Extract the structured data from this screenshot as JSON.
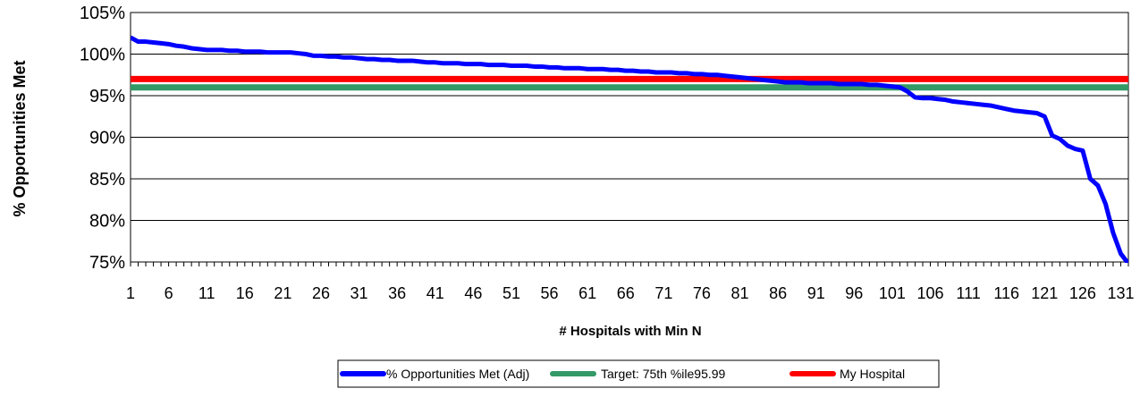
{
  "chart_data": {
    "type": "line",
    "title": "",
    "xlabel": "# Hospitals with Min N",
    "ylabel": "% Opportunities Met",
    "xlim": [
      1,
      132
    ],
    "ylim": [
      75,
      105
    ],
    "x_tick_values": [
      1,
      6,
      11,
      16,
      21,
      26,
      31,
      36,
      41,
      46,
      51,
      56,
      61,
      66,
      71,
      76,
      81,
      86,
      91,
      96,
      101,
      106,
      111,
      116,
      121,
      126,
      131
    ],
    "x_tick_labels": [
      "1",
      "6",
      "11",
      "16",
      "21",
      "26",
      "31",
      "36",
      "41",
      "46",
      "51",
      "56",
      "61",
      "66",
      "71",
      "76",
      "81",
      "86",
      "91",
      "96",
      "101",
      "106",
      "111",
      "116",
      "121",
      "126",
      "131"
    ],
    "y_tick_values": [
      75,
      80,
      85,
      90,
      95,
      100,
      105
    ],
    "y_tick_labels": [
      "75%",
      "80%",
      "85%",
      "90%",
      "95%",
      "100%",
      "105%"
    ],
    "grid": "horizontal",
    "legend_position": "bottom",
    "series": [
      {
        "name": "% Opportunities Met (Adj)",
        "color": "#0000ff",
        "x": [
          1,
          2,
          3,
          4,
          5,
          6,
          7,
          8,
          9,
          10,
          11,
          12,
          13,
          14,
          15,
          16,
          17,
          18,
          19,
          20,
          21,
          22,
          23,
          24,
          25,
          26,
          27,
          28,
          29,
          30,
          31,
          32,
          33,
          34,
          35,
          36,
          37,
          38,
          39,
          40,
          41,
          42,
          43,
          44,
          45,
          46,
          47,
          48,
          49,
          50,
          51,
          52,
          53,
          54,
          55,
          56,
          57,
          58,
          59,
          60,
          61,
          62,
          63,
          64,
          65,
          66,
          67,
          68,
          69,
          70,
          71,
          72,
          73,
          74,
          75,
          76,
          77,
          78,
          79,
          80,
          81,
          82,
          83,
          84,
          85,
          86,
          87,
          88,
          89,
          90,
          91,
          92,
          93,
          94,
          95,
          96,
          97,
          98,
          99,
          100,
          101,
          102,
          103,
          104,
          105,
          106,
          107,
          108,
          109,
          110,
          111,
          112,
          113,
          114,
          115,
          116,
          117,
          118,
          119,
          120,
          121,
          122,
          123,
          124,
          125,
          126,
          127,
          128,
          129,
          130,
          131,
          132
        ],
        "values": [
          102.0,
          101.5,
          101.5,
          101.4,
          101.3,
          101.2,
          101.0,
          100.9,
          100.7,
          100.6,
          100.5,
          100.5,
          100.5,
          100.4,
          100.4,
          100.3,
          100.3,
          100.3,
          100.2,
          100.2,
          100.2,
          100.2,
          100.1,
          100.0,
          99.8,
          99.8,
          99.7,
          99.7,
          99.6,
          99.6,
          99.5,
          99.4,
          99.4,
          99.3,
          99.3,
          99.2,
          99.2,
          99.2,
          99.1,
          99.0,
          99.0,
          98.9,
          98.9,
          98.9,
          98.8,
          98.8,
          98.8,
          98.7,
          98.7,
          98.7,
          98.6,
          98.6,
          98.6,
          98.5,
          98.5,
          98.4,
          98.4,
          98.3,
          98.3,
          98.3,
          98.2,
          98.2,
          98.2,
          98.1,
          98.1,
          98.0,
          98.0,
          97.9,
          97.9,
          97.8,
          97.8,
          97.8,
          97.7,
          97.7,
          97.6,
          97.6,
          97.5,
          97.5,
          97.4,
          97.3,
          97.2,
          97.1,
          97.0,
          96.9,
          96.8,
          96.7,
          96.6,
          96.6,
          96.6,
          96.5,
          96.5,
          96.5,
          96.5,
          96.4,
          96.4,
          96.4,
          96.4,
          96.3,
          96.3,
          96.2,
          96.1,
          96.0,
          95.5,
          94.8,
          94.7,
          94.7,
          94.6,
          94.5,
          94.3,
          94.2,
          94.1,
          94.0,
          93.9,
          93.8,
          93.6,
          93.4,
          93.2,
          93.1,
          93.0,
          92.9,
          92.5,
          90.2,
          89.8,
          89.0,
          88.6,
          88.4,
          85.0,
          84.2,
          82.0,
          78.5,
          76.0,
          74.8
        ]
      },
      {
        "name": "Target: 75th %ile95.99",
        "color": "#339966",
        "x": [
          1,
          132
        ],
        "values": [
          95.99,
          95.99
        ]
      },
      {
        "name": "My Hospital",
        "color": "#ff0000",
        "x": [
          1,
          132
        ],
        "values": [
          97.0,
          97.0
        ]
      }
    ]
  }
}
